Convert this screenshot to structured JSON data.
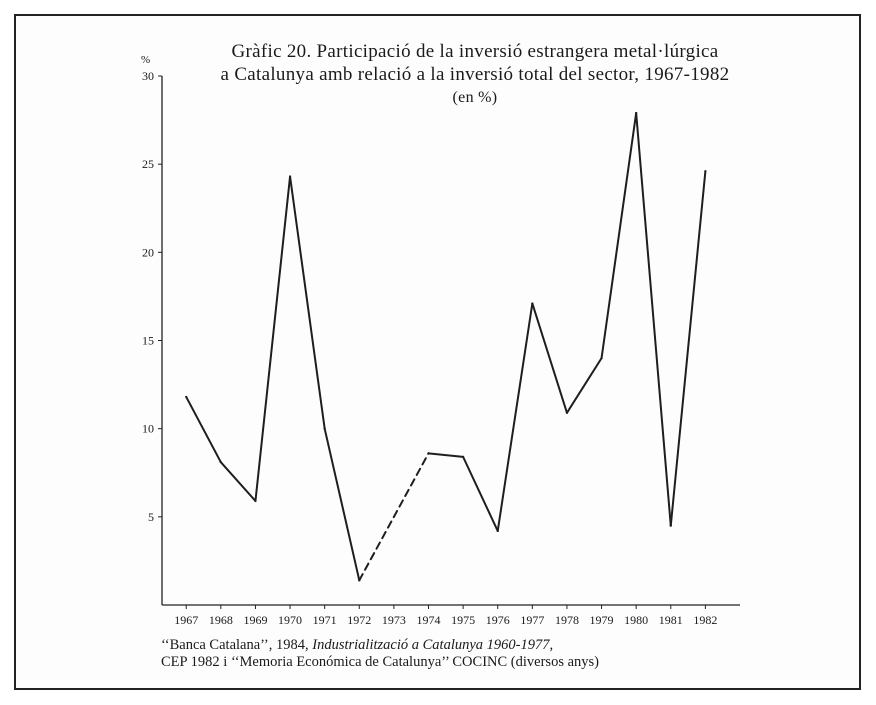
{
  "chart_data": {
    "type": "line",
    "title_line1": "Gràfic 20. Participació de la inversió estrangera metal·lúrgica",
    "title_line2": "a Catalunya amb relació a la inversió total del sector, 1967-1982",
    "subtitle": "(en %)",
    "y_unit": "%",
    "x": [
      1967,
      1968,
      1969,
      1970,
      1971,
      1972,
      1973,
      1974,
      1975,
      1976,
      1977,
      1978,
      1979,
      1980,
      1981,
      1982
    ],
    "x_tick_labels": [
      "1967",
      "1968",
      "1969",
      "1970",
      "1971",
      "1972",
      "1973",
      "1974",
      "1975",
      "1976",
      "1977",
      "1978",
      "1979",
      "1980",
      "1981",
      "1982"
    ],
    "y_ticks": [
      5,
      10,
      15,
      20,
      25,
      30
    ],
    "y_tick_labels": [
      "5",
      "10",
      "15",
      "20",
      "25",
      "30"
    ],
    "ylim": [
      0,
      30
    ],
    "xlim": [
      1966.3,
      1983
    ],
    "series": [
      {
        "points": [
          {
            "x": 1967,
            "y": 11.8
          },
          {
            "x": 1968,
            "y": 8.1
          },
          {
            "x": 1969,
            "y": 5.9
          },
          {
            "x": 1970,
            "y": 24.3
          },
          {
            "x": 1971,
            "y": 10.0
          },
          {
            "x": 1972,
            "y": 1.4
          },
          {
            "x": 1974,
            "y": 8.6
          },
          {
            "x": 1975,
            "y": 8.4
          },
          {
            "x": 1976,
            "y": 4.2
          },
          {
            "x": 1977,
            "y": 17.1
          },
          {
            "x": 1978,
            "y": 10.9
          },
          {
            "x": 1979,
            "y": 14.0
          },
          {
            "x": 1980,
            "y": 27.9
          },
          {
            "x": 1981,
            "y": 4.5
          },
          {
            "x": 1982,
            "y": 24.6
          }
        ],
        "interpolated_segment": [
          1972,
          1974
        ]
      }
    ],
    "grid": false,
    "line_color": "#1e1e1e"
  },
  "source": {
    "line1_part1": "‘‘Banca Catalana’’, 1984, ",
    "line1_italic": "Industrialització a Catalunya 1960-1977",
    "line1_part2": ",",
    "line2": "CEP 1982 i ‘‘Memoria Económica de Catalunya’’ COCINC (diversos anys)"
  }
}
